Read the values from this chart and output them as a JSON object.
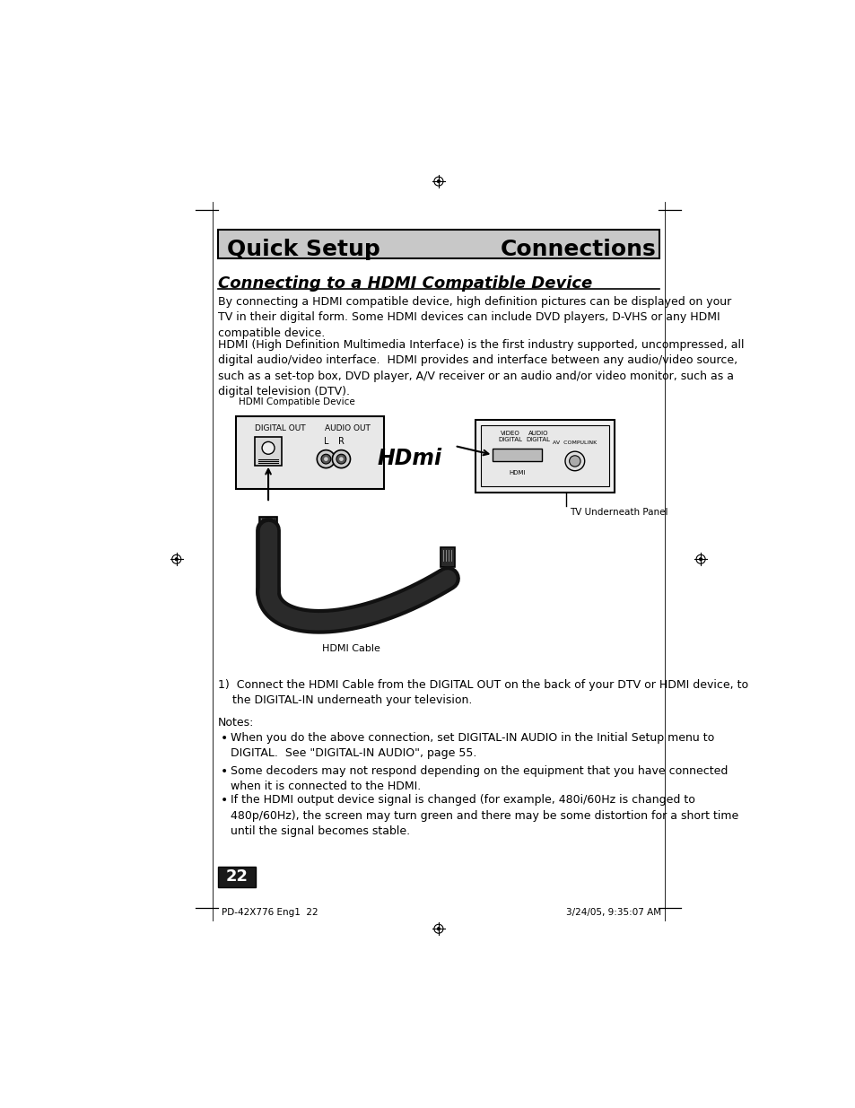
{
  "bg_color": "#ffffff",
  "header_bg": "#c8c8c8",
  "header_text_left": "Quick Setup",
  "header_text_right": "Connections",
  "header_fontsize": 18,
  "section_title": "Connecting to a HDMI Compatible Device",
  "section_title_fontsize": 13,
  "body_fontsize": 9.0,
  "para1": "By connecting a HDMI compatible device, high definition pictures can be displayed on your\nTV in their digital form. Some HDMI devices can include DVD players, D-VHS or any HDMI\ncompatible device.",
  "para2": "HDMI (High Definition Multimedia Interface) is the first industry supported, uncompressed, all\ndigital audio/video interface.  HDMI provides and interface between any audio/video source,\nsuch as a set-top box, DVD player, A/V receiver or an audio and/or video monitor, such as a\ndigital television (DTV).",
  "label_hdmi_compat": "HDMI Compatible Device",
  "label_digital_out": "DIGITAL OUT",
  "label_audio_out": "AUDIO OUT",
  "label_L": "L",
  "label_R": "R",
  "label_hdmi_cable": "HDMI Cable",
  "label_tv_panel": "TV Underneath Panel",
  "label_video_digital": "VIDEO\nDIGITAL",
  "label_audio_digital": "AUDIO\nDIGITAL",
  "label_av_compulink": "AV  COMPULINK",
  "label_hdmi_port": "HDMI",
  "hdmi_logo": "HDmi",
  "step1": "1)  Connect the HDMI Cable from the DIGITAL OUT on the back of your DTV or HDMI device, to\n    the DIGITAL-IN underneath your television.",
  "notes_header": "Notes:",
  "note1": "When you do the above connection, set DIGITAL-IN AUDIO in the Initial Setup menu to\nDIGITAL.  See \"DIGITAL-IN AUDIO\", page 55.",
  "note2": "Some decoders may not respond depending on the equipment that you have connected\nwhen it is connected to the HDMI.",
  "note3": "If the HDMI output device signal is changed (for example, 480i/60Hz is changed to\n480p/60Hz), the screen may turn green and there may be some distortion for a short time\nuntil the signal becomes stable.",
  "page_number": "22",
  "footer_left": "PD-42X776 Eng1  22",
  "footer_right": "3/24/05, 9:35:07 AM"
}
